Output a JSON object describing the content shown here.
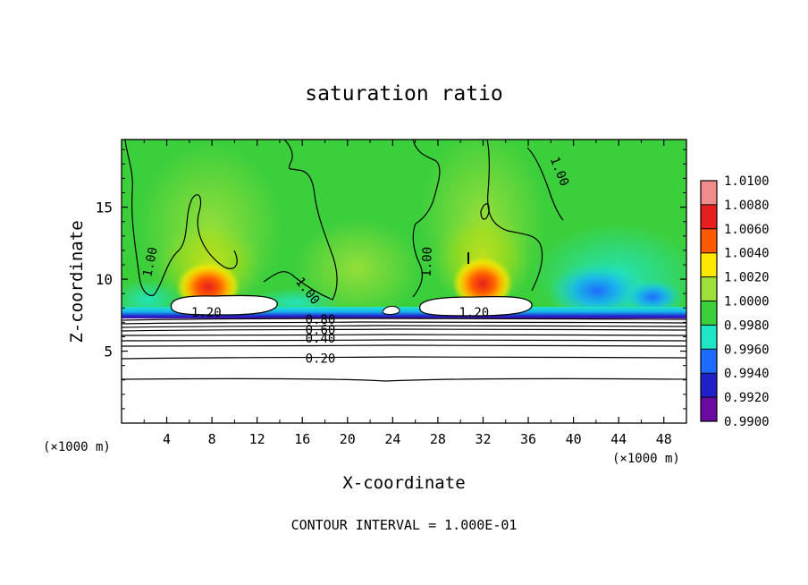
{
  "chart_data": {
    "type": "heatmap",
    "title": "saturation ratio",
    "xlabel": "X-coordinate",
    "ylabel": "Z-coordinate",
    "x_unit": "(×1000 m)",
    "y_unit": "(×1000 m)",
    "x_ticks": [
      4,
      8,
      12,
      16,
      20,
      24,
      28,
      32,
      36,
      40,
      44,
      48
    ],
    "y_ticks": [
      5,
      10,
      15
    ],
    "xlim": [
      0,
      50
    ],
    "ylim": [
      0,
      19.7
    ],
    "grid": false,
    "colorbar": {
      "position": "right",
      "levels": [
        0.99,
        0.992,
        0.994,
        0.996,
        0.998,
        1.0,
        1.002,
        1.004,
        1.006,
        1.008,
        1.01
      ],
      "tick_labels": [
        "0.9900",
        "0.9920",
        "0.9940",
        "0.9960",
        "0.9980",
        "1.0000",
        "1.0020",
        "1.0040",
        "1.0060",
        "1.0080",
        "1.0100"
      ],
      "colors": [
        "#6a0a9e",
        "#2020c8",
        "#1e6cff",
        "#18b4f0",
        "#20e6c8",
        "#3ccf3c",
        "#9ee03a",
        "#ffe800",
        "#ffb000",
        "#ff5a00",
        "#e61e1e",
        "#f08c8c"
      ]
    },
    "contour_labels": [
      {
        "text": "1.00",
        "x": 2.5,
        "z": 11.2,
        "rotate": -78
      },
      {
        "text": "1.00",
        "x": 16.5,
        "z": 9.2,
        "rotate": 52
      },
      {
        "text": "1.00",
        "x": 27,
        "z": 11.2,
        "rotate": -88
      },
      {
        "text": "1.00",
        "x": 38.8,
        "z": 17.5,
        "rotate": 68
      },
      {
        "text": "1.20",
        "x": 7.5,
        "z": 7.7,
        "rotate": 0
      },
      {
        "text": "1.20",
        "x": 31.2,
        "z": 7.7,
        "rotate": 0
      },
      {
        "text": "0.80",
        "x": 17.6,
        "z": 7.2,
        "rotate": 0
      },
      {
        "text": "0.60",
        "x": 17.6,
        "z": 6.5,
        "rotate": 0
      },
      {
        "text": "0.40",
        "x": 17.6,
        "z": 5.9,
        "rotate": 0
      },
      {
        "text": "0.20",
        "x": 17.6,
        "z": 4.5,
        "rotate": 0
      }
    ],
    "annotation": "CONTOUR INTERVAL = 1.000E-01"
  },
  "colors": {
    "field_green": "#3ccf3c",
    "field_light_green": "#9ee03a",
    "cloud_red": "#e61e1e",
    "dry_blue": "#1e6cff",
    "cyan": "#18b4f0"
  }
}
